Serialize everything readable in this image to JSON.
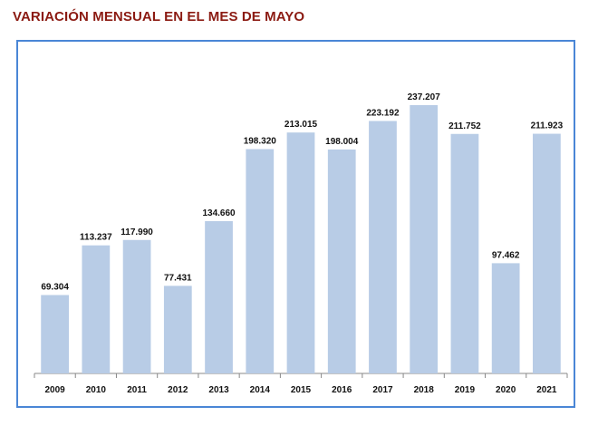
{
  "title": "VARIACIÓN MENSUAL EN EL MES DE MAYO",
  "colors": {
    "title": "#8b1a12",
    "bar": "#b8cce6",
    "frame": "#4a86d6",
    "axis": "#888888"
  },
  "chart_data": {
    "type": "bar",
    "title": "VARIACIÓN MENSUAL EN EL MES DE MAYO",
    "xlabel": "",
    "ylabel": "",
    "categories": [
      "2009",
      "2010",
      "2011",
      "2012",
      "2013",
      "2014",
      "2015",
      "2016",
      "2017",
      "2018",
      "2019",
      "2020",
      "2021"
    ],
    "values": [
      69304,
      113237,
      117990,
      77431,
      134660,
      198320,
      213015,
      198004,
      223192,
      237207,
      211752,
      97462,
      211923
    ],
    "value_labels": [
      "69.304",
      "113.237",
      "117.990",
      "77.431",
      "134.660",
      "198.320",
      "213.015",
      "198.004",
      "223.192",
      "237.207",
      "211.752",
      "97.462",
      "211.923"
    ],
    "ylim": [
      0,
      250000
    ],
    "grid": false,
    "legend": "none"
  }
}
